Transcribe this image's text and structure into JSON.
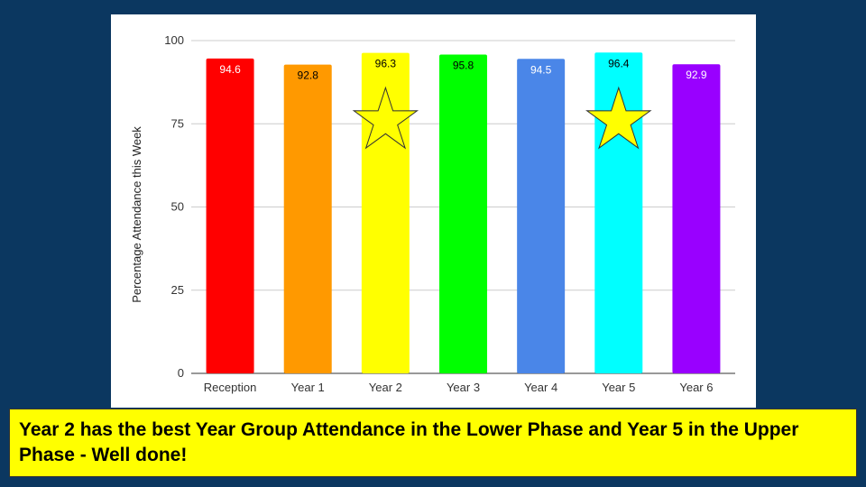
{
  "chart_data": {
    "type": "bar",
    "categories": [
      "Reception",
      "Year 1",
      "Year 2",
      "Year 3",
      "Year 4",
      "Year 5",
      "Year 6"
    ],
    "values": [
      94.6,
      92.8,
      96.3,
      95.8,
      94.5,
      96.4,
      92.9
    ],
    "value_labels": [
      "94.6",
      "92.8",
      "96.3",
      "95.8",
      "94.5",
      "96.4",
      "92.9"
    ],
    "bar_colors": [
      "#ff0000",
      "#ff9900",
      "#ffff00",
      "#00ff00",
      "#4a86e8",
      "#00ffff",
      "#9900ff"
    ],
    "label_colors": [
      "#ffffff",
      "#000000",
      "#000000",
      "#000000",
      "#ffffff",
      "#000000",
      "#ffffff"
    ],
    "ylabel": "Percentage Attendance this Week",
    "xlabel": "",
    "ylim": [
      0,
      100
    ],
    "yticks": [
      "0",
      "25",
      "50",
      "75",
      "100"
    ],
    "grid": true,
    "starred_categories": [
      "Year 2",
      "Year 5"
    ],
    "star_color": "#ffff00"
  },
  "caption": {
    "text": "Year 2 has the best Year Group Attendance in the Lower Phase and Year 5 in the Upper Phase - Well done!"
  }
}
